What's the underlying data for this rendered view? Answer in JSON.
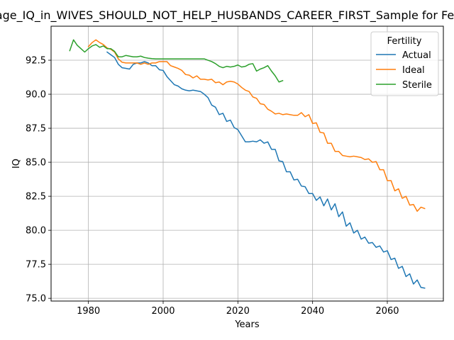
{
  "chart_data": {
    "type": "line",
    "title": "Average_IQ_in_WIVES_SHOULD_NOT_HELP_HUSBANDS_CAREER_FIRST_Sample for Fertility",
    "xlabel": "Years",
    "ylabel": "IQ",
    "xlim": [
      1970,
      2075
    ],
    "ylim": [
      74.8,
      95.0
    ],
    "xticks": [
      1980,
      2000,
      2020,
      2040,
      2060
    ],
    "xtick_labels": [
      "1980",
      "2000",
      "2020",
      "2040",
      "2060"
    ],
    "yticks": [
      75.0,
      77.5,
      80.0,
      82.5,
      85.0,
      87.5,
      90.0,
      92.5
    ],
    "ytick_labels": [
      "75.0",
      "77.5",
      "80.0",
      "82.5",
      "85.0",
      "87.5",
      "90.0",
      "92.5"
    ],
    "grid": true,
    "legend": {
      "title": "Fertility",
      "position": "top-right"
    },
    "series": [
      {
        "name": "Actual",
        "color": "#1f77b4",
        "x": [
          1985,
          1986,
          1987,
          1988,
          1989,
          1990,
          1991,
          1992,
          1993,
          1994,
          1995,
          1996,
          1997,
          1998,
          1999,
          2000,
          2001,
          2002,
          2003,
          2004,
          2005,
          2006,
          2007,
          2008,
          2009,
          2010,
          2011,
          2012,
          2013,
          2014,
          2015,
          2016,
          2017,
          2018,
          2019,
          2020,
          2021,
          2022,
          2023,
          2024,
          2025,
          2026,
          2027,
          2028,
          2029,
          2030,
          2031,
          2032,
          2033,
          2034,
          2035,
          2036,
          2037,
          2038,
          2039,
          2040,
          2041,
          2042,
          2043,
          2044,
          2045,
          2046,
          2047,
          2048,
          2049,
          2050,
          2051,
          2052,
          2053,
          2054,
          2055,
          2056,
          2057,
          2058,
          2059,
          2060,
          2061,
          2062,
          2063,
          2064,
          2065,
          2066,
          2067,
          2068,
          2069,
          2070
        ],
        "y": [
          93.1,
          92.9,
          92.7,
          92.2,
          91.95,
          91.9,
          91.85,
          92.2,
          92.3,
          92.3,
          92.4,
          92.3,
          92.1,
          92.1,
          91.8,
          91.75,
          91.3,
          91.0,
          90.7,
          90.6,
          90.4,
          90.3,
          90.25,
          90.3,
          90.25,
          90.2,
          90.0,
          89.75,
          89.2,
          89.05,
          88.5,
          88.6,
          88.0,
          88.1,
          87.55,
          87.4,
          86.95,
          86.5,
          86.5,
          86.55,
          86.5,
          86.65,
          86.4,
          86.5,
          85.95,
          85.95,
          85.1,
          85.05,
          84.3,
          84.3,
          83.7,
          83.75,
          83.25,
          83.2,
          82.7,
          82.7,
          82.2,
          82.45,
          81.8,
          82.3,
          81.5,
          81.95,
          81.0,
          81.35,
          80.3,
          80.55,
          79.8,
          80.0,
          79.35,
          79.5,
          79.05,
          79.1,
          78.75,
          78.85,
          78.4,
          78.5,
          77.85,
          77.95,
          77.2,
          77.35,
          76.6,
          76.8,
          76.05,
          76.35,
          75.8,
          75.75
        ]
      },
      {
        "name": "Ideal",
        "color": "#ff7f0e",
        "x": [
          1980,
          1981,
          1982,
          1983,
          1984,
          1985,
          1986,
          1987,
          1988,
          1989,
          1990,
          1991,
          1992,
          1993,
          1994,
          1995,
          1996,
          1997,
          1998,
          1999,
          2000,
          2001,
          2002,
          2003,
          2004,
          2005,
          2006,
          2007,
          2008,
          2009,
          2010,
          2011,
          2012,
          2013,
          2014,
          2015,
          2016,
          2017,
          2018,
          2019,
          2020,
          2021,
          2022,
          2023,
          2024,
          2025,
          2026,
          2027,
          2028,
          2029,
          2030,
          2031,
          2032,
          2033,
          2034,
          2035,
          2036,
          2037,
          2038,
          2039,
          2040,
          2041,
          2042,
          2043,
          2044,
          2045,
          2046,
          2047,
          2048,
          2049,
          2050,
          2051,
          2052,
          2053,
          2054,
          2055,
          2056,
          2057,
          2058,
          2059,
          2060,
          2061,
          2062,
          2063,
          2064,
          2065,
          2066,
          2067,
          2068,
          2069,
          2070
        ],
        "y": [
          93.5,
          93.8,
          94.0,
          93.8,
          93.65,
          93.4,
          93.3,
          93.1,
          92.6,
          92.35,
          92.3,
          92.3,
          92.3,
          92.3,
          92.2,
          92.3,
          92.2,
          92.3,
          92.3,
          92.4,
          92.4,
          92.4,
          92.1,
          92.0,
          91.9,
          91.75,
          91.45,
          91.4,
          91.2,
          91.35,
          91.1,
          91.1,
          91.05,
          91.1,
          90.85,
          90.9,
          90.7,
          90.9,
          90.95,
          90.9,
          90.75,
          90.5,
          90.3,
          90.2,
          89.8,
          89.7,
          89.3,
          89.25,
          88.9,
          88.75,
          88.55,
          88.6,
          88.5,
          88.55,
          88.5,
          88.45,
          88.45,
          88.65,
          88.35,
          88.5,
          87.85,
          87.9,
          87.2,
          87.15,
          86.4,
          86.4,
          85.8,
          85.8,
          85.5,
          85.45,
          85.4,
          85.45,
          85.4,
          85.35,
          85.2,
          85.25,
          85.0,
          85.05,
          84.45,
          84.45,
          83.65,
          83.65,
          82.9,
          83.05,
          82.35,
          82.5,
          81.85,
          81.9,
          81.4,
          81.7,
          81.6
        ]
      },
      {
        "name": "Sterile",
        "color": "#2ca02c",
        "x": [
          1975,
          1976,
          1977,
          1978,
          1979,
          1980,
          1981,
          1982,
          1983,
          1984,
          1985,
          1986,
          1987,
          1988,
          1989,
          1990,
          1991,
          1992,
          1993,
          1994,
          1995,
          1996,
          1997,
          1998,
          1999,
          2000,
          2001,
          2002,
          2003,
          2004,
          2005,
          2006,
          2007,
          2008,
          2009,
          2010,
          2011,
          2012,
          2013,
          2014,
          2015,
          2016,
          2017,
          2018,
          2019,
          2020,
          2021,
          2022,
          2023,
          2024,
          2025,
          2026,
          2027,
          2028,
          2029,
          2030,
          2031,
          2032
        ],
        "y": [
          93.2,
          94.0,
          93.6,
          93.35,
          93.1,
          93.35,
          93.55,
          93.65,
          93.45,
          93.55,
          93.35,
          93.35,
          93.15,
          92.75,
          92.75,
          92.85,
          92.8,
          92.75,
          92.75,
          92.8,
          92.7,
          92.65,
          92.62,
          92.6,
          92.6,
          92.6,
          92.6,
          92.6,
          92.6,
          92.6,
          92.6,
          92.6,
          92.6,
          92.6,
          92.6,
          92.6,
          92.6,
          92.5,
          92.4,
          92.25,
          92.05,
          91.95,
          92.05,
          92.0,
          92.05,
          92.15,
          92.0,
          92.05,
          92.2,
          92.25,
          91.7,
          91.85,
          91.95,
          92.1,
          91.7,
          91.35,
          90.9,
          91.0
        ]
      }
    ]
  }
}
